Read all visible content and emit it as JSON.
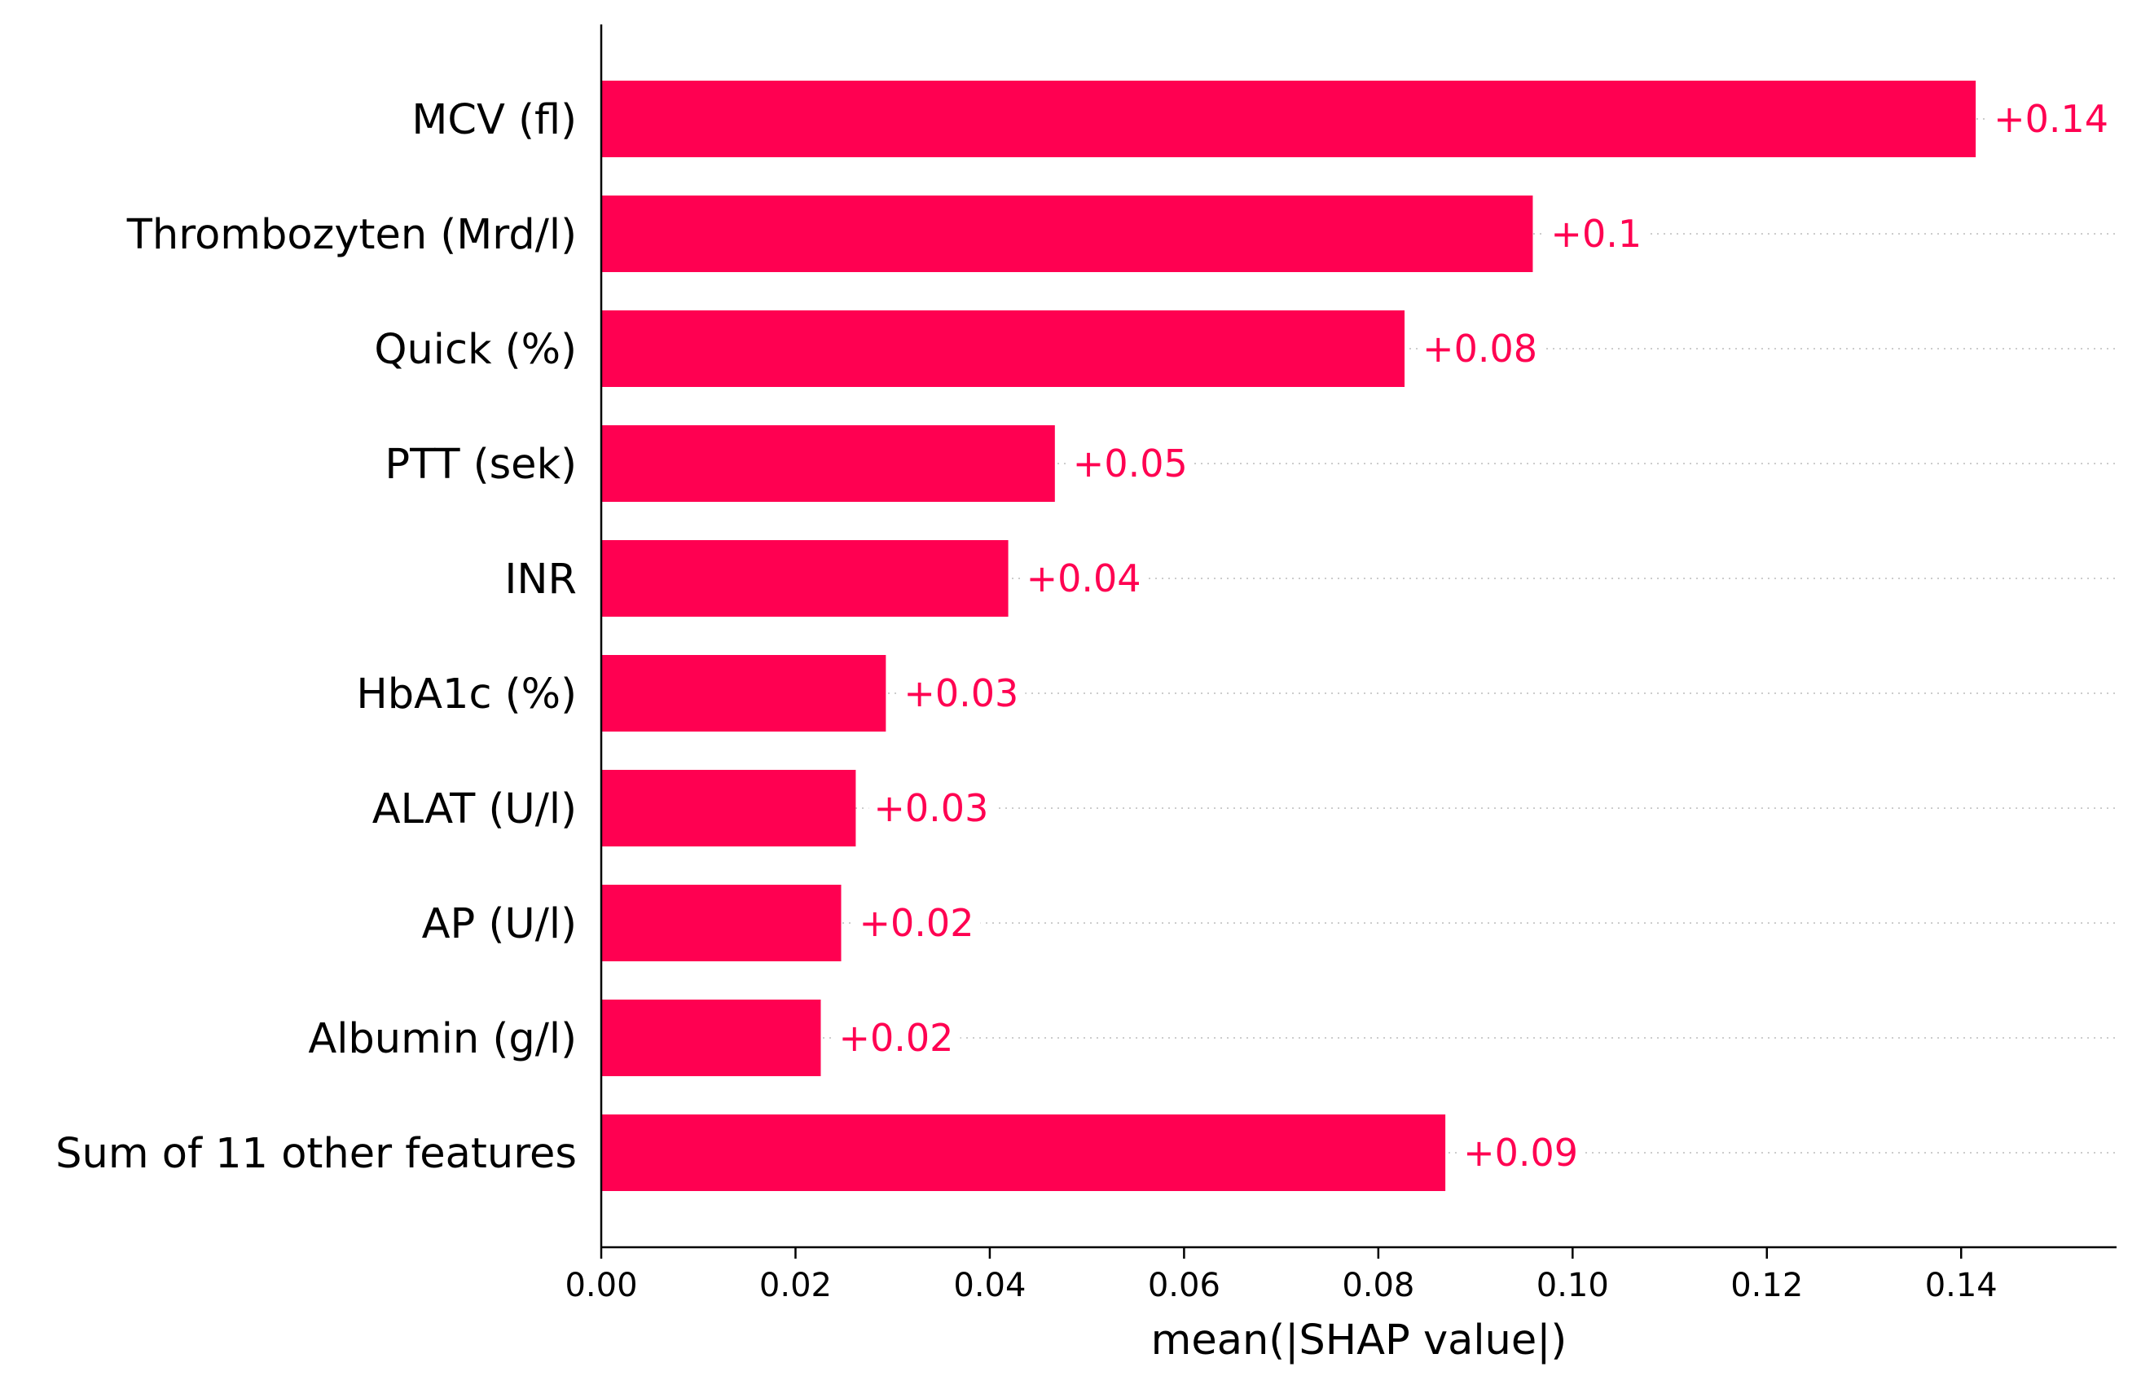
{
  "chart_data": {
    "type": "bar",
    "orientation": "horizontal",
    "categories": [
      "MCV (fl)",
      "Thrombozyten (Mrd/l)",
      "Quick (%)",
      "PTT (sek)",
      "INR",
      "HbA1c (%)",
      "ALAT (U/l)",
      "AP (U/l)",
      "Albumin (g/l)",
      "Sum of 11 other features"
    ],
    "values": [
      0.1415,
      0.0959,
      0.0827,
      0.0467,
      0.0419,
      0.0293,
      0.0262,
      0.0247,
      0.0226,
      0.0869
    ],
    "value_labels": [
      "+0.14",
      "+0.1",
      "+0.08",
      "+0.05",
      "+0.04",
      "+0.03",
      "+0.03",
      "+0.02",
      "+0.02",
      "+0.09"
    ],
    "title": "",
    "xlabel": "mean(|SHAP value|)",
    "ylabel": "",
    "xlim": [
      0,
      0.156
    ],
    "xticks": [
      0.0,
      0.02,
      0.04,
      0.06,
      0.08,
      0.1,
      0.12,
      0.14
    ],
    "xtick_labels": [
      "0.00",
      "0.02",
      "0.04",
      "0.06",
      "0.08",
      "0.10",
      "0.12",
      "0.14"
    ],
    "grid": false,
    "legend": "none",
    "bar_color": "#ff0051",
    "label_color": "#ff0051",
    "guide_line_color": "#cccccc"
  }
}
